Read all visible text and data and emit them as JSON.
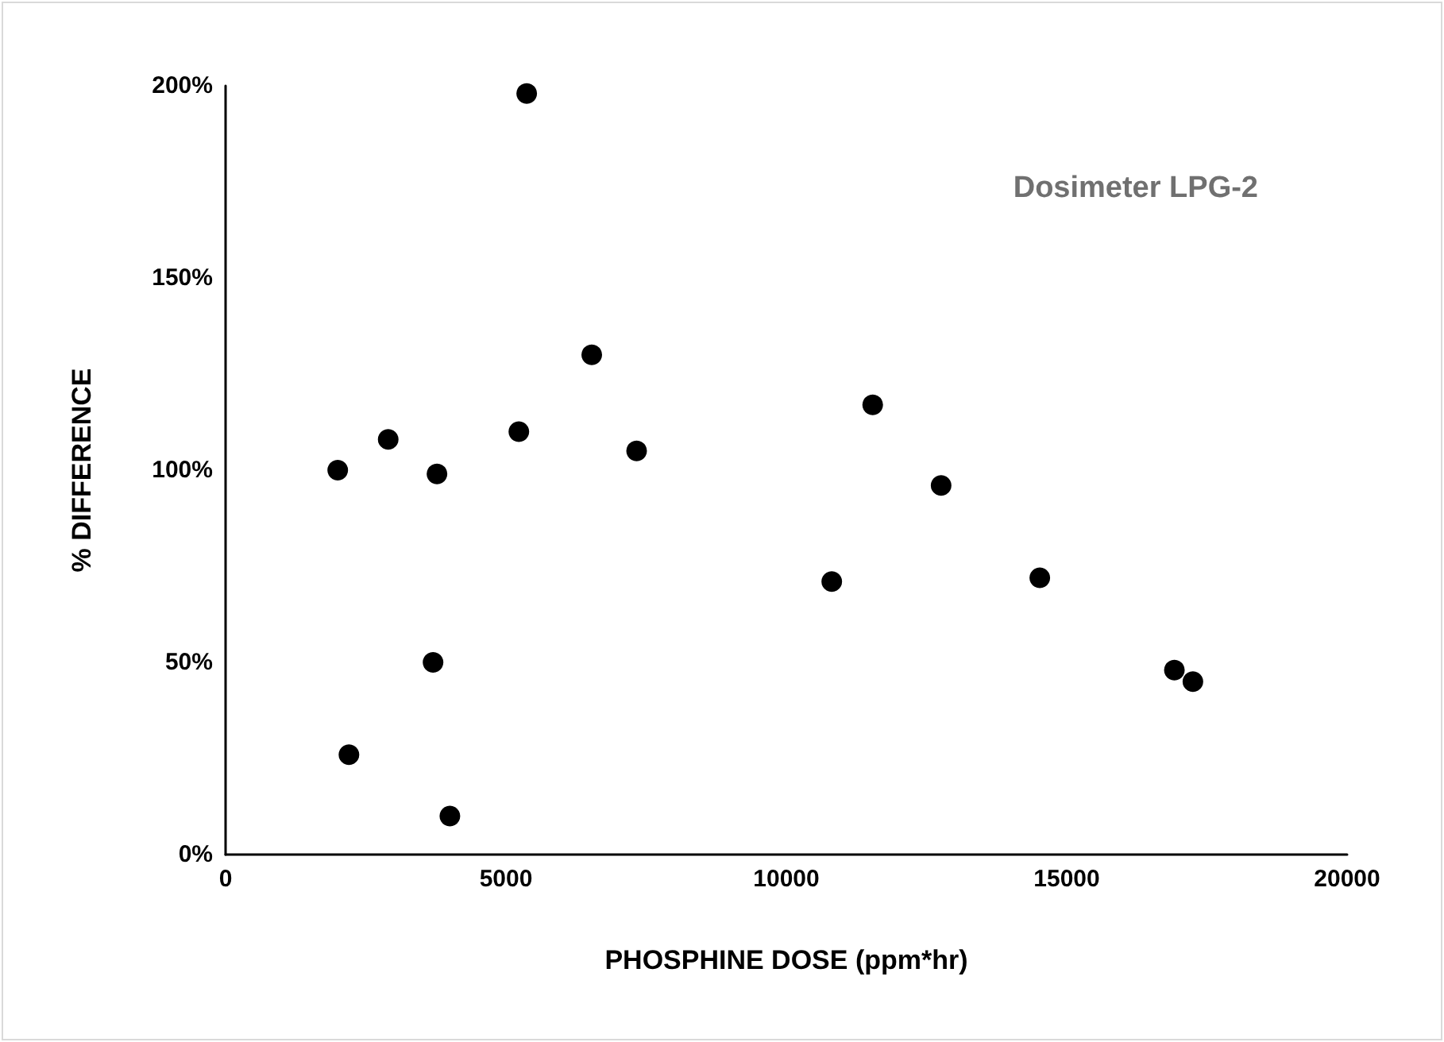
{
  "chart_data": {
    "type": "scatter",
    "xlabel": "PHOSPHINE DOSE (ppm*hr)",
    "ylabel": "% DIFFERENCE",
    "annotations": [
      "Dosimeter LPG-2"
    ],
    "x": [
      2000,
      2200,
      2900,
      3700,
      3770,
      4000,
      5230,
      5370,
      6530,
      7330,
      10810,
      11540,
      12760,
      14520,
      16920,
      17250
    ],
    "series": [
      {
        "color": "#000000",
        "values": [
          100,
          26,
          108,
          50,
          99,
          10,
          110,
          198,
          130,
          105,
          71,
          117,
          96,
          72,
          48,
          45
        ]
      }
    ],
    "xlim": [
      0,
      20000
    ],
    "xticks": [
      0,
      5000,
      10000,
      15000,
      20000
    ],
    "ylim": [
      0,
      200
    ],
    "yticks": [
      {
        "value": 0,
        "label": "0%"
      },
      {
        "value": 50,
        "label": "50%"
      },
      {
        "value": 100,
        "label": "100%"
      },
      {
        "value": 150,
        "label": "150%"
      },
      {
        "value": 200,
        "label": "200%"
      }
    ],
    "marker": "circle"
  }
}
